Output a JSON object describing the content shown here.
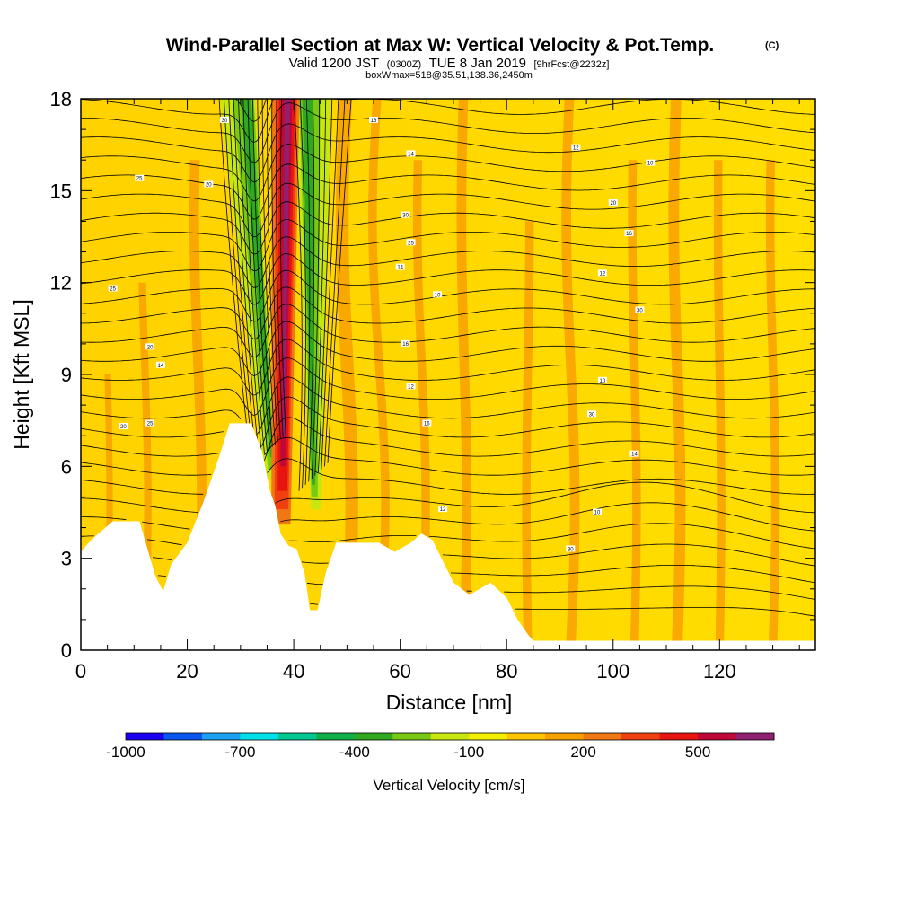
{
  "chart_data": {
    "type": "heatmap",
    "title": "Wind-Parallel Section at Max W: Vertical Velocity & Pot.Temp.",
    "title_mark": "(C)",
    "subtitle": {
      "valid": "Valid 1200 JST",
      "utc": "(0300Z)",
      "date": "TUE 8 Jan 2019",
      "fcst": "[9hrFcst@2232z]"
    },
    "box_info": "boxWmax=518@35.51,138.36,2450m",
    "xlabel": "Distance [nm]",
    "ylabel": "Height [Kft MSL]",
    "xlim": [
      0,
      138
    ],
    "ylim": [
      0,
      18
    ],
    "x_ticks": [
      "0",
      "20",
      "40",
      "60",
      "80",
      "100",
      "120"
    ],
    "y_ticks": [
      "0",
      "3",
      "6",
      "9",
      "12",
      "15",
      "18"
    ],
    "colorbar": {
      "label": "Vertical Velocity [cm/s]",
      "levels": [
        -1000,
        -900,
        -800,
        -700,
        -600,
        -500,
        -400,
        -300,
        -200,
        -100,
        0,
        100,
        200,
        300,
        400,
        500,
        600,
        700
      ],
      "tick_labels": [
        "-1000",
        "-700",
        "-400",
        "-100",
        "200",
        "500"
      ],
      "colors": [
        "#1a00f0",
        "#0a55f0",
        "#1aa0f0",
        "#00e0e8",
        "#00c890",
        "#10b048",
        "#30a820",
        "#78c814",
        "#c8e610",
        "#f0f000",
        "#ffde00",
        "#ffc400",
        "#f8a000",
        "#f07814",
        "#f04010",
        "#e81410",
        "#c00838",
        "#902070",
        "#5a0a88"
      ]
    },
    "terrain": [
      [
        0,
        3.2
      ],
      [
        2,
        3.6
      ],
      [
        6,
        4.2
      ],
      [
        11,
        4.2
      ],
      [
        12,
        3.6
      ],
      [
        14,
        2.4
      ],
      [
        15.5,
        1.9
      ],
      [
        17,
        2.8
      ],
      [
        20,
        3.5
      ],
      [
        23,
        4.8
      ],
      [
        26,
        6.3
      ],
      [
        28,
        7.4
      ],
      [
        32,
        7.4
      ],
      [
        34,
        6.5
      ],
      [
        35.5,
        5.2
      ],
      [
        36.5,
        4.7
      ],
      [
        37.5,
        3.8
      ],
      [
        39,
        3.4
      ],
      [
        40.5,
        3.3
      ],
      [
        42,
        2.5
      ],
      [
        43,
        1.3
      ],
      [
        44.5,
        1.3
      ],
      [
        46,
        2.5
      ],
      [
        48,
        3.5
      ],
      [
        56,
        3.5
      ],
      [
        59,
        3.2
      ],
      [
        62,
        3.5
      ],
      [
        64,
        3.8
      ],
      [
        66,
        3.6
      ],
      [
        70,
        2.2
      ],
      [
        73,
        1.8
      ],
      [
        77,
        2.2
      ],
      [
        80,
        1.7
      ],
      [
        82,
        1.0
      ],
      [
        84,
        0.5
      ],
      [
        85,
        0.3
      ],
      [
        138,
        0.3
      ]
    ],
    "theta_labels": [
      "30",
      "25",
      "20",
      "16",
      "14",
      "12",
      "10"
    ]
  }
}
